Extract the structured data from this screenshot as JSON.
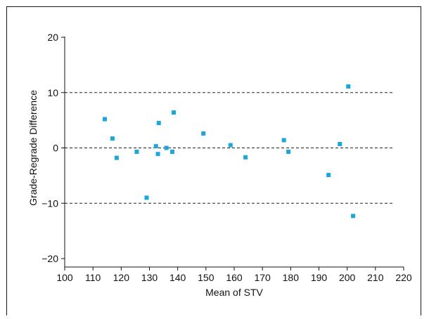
{
  "chart_data": {
    "type": "scatter",
    "xlabel": "Mean of STV",
    "ylabel": "Grade-Regrade Difference",
    "xlim": [
      100,
      220
    ],
    "ylim": [
      -22,
      20
    ],
    "x_ticks": [
      100,
      110,
      120,
      130,
      140,
      150,
      160,
      170,
      180,
      190,
      200,
      210,
      220
    ],
    "y_ticks": [
      20,
      10,
      0,
      -10,
      -20
    ],
    "x_tick_labels": [
      "100",
      "110",
      "120",
      "130",
      "140",
      "150",
      "160",
      "170",
      "180",
      "190",
      "200",
      "210",
      "220"
    ],
    "y_tick_labels": [
      "20",
      "10",
      "0",
      "−10",
      "−20"
    ],
    "reference_lines": [
      10,
      0,
      -10
    ],
    "grid": false,
    "marker_color": "#1aa7d9",
    "series": [
      {
        "points": [
          {
            "x": 114.2,
            "y": 5.2
          },
          {
            "x": 116.9,
            "y": 1.7
          },
          {
            "x": 118.4,
            "y": -1.8
          },
          {
            "x": 125.5,
            "y": -0.7
          },
          {
            "x": 129.0,
            "y": -9.0
          },
          {
            "x": 132.3,
            "y": 0.3
          },
          {
            "x": 133.0,
            "y": -1.1
          },
          {
            "x": 133.3,
            "y": 4.5
          },
          {
            "x": 136.0,
            "y": 0.0
          },
          {
            "x": 138.1,
            "y": -0.7
          },
          {
            "x": 138.6,
            "y": 6.4
          },
          {
            "x": 149.1,
            "y": 2.6
          },
          {
            "x": 158.7,
            "y": 0.5
          },
          {
            "x": 164.0,
            "y": -1.7
          },
          {
            "x": 177.6,
            "y": 1.4
          },
          {
            "x": 179.2,
            "y": -0.7
          },
          {
            "x": 193.4,
            "y": -4.9
          },
          {
            "x": 197.4,
            "y": 0.7
          },
          {
            "x": 200.4,
            "y": 11.1
          },
          {
            "x": 202.1,
            "y": -12.3
          }
        ]
      }
    ]
  }
}
